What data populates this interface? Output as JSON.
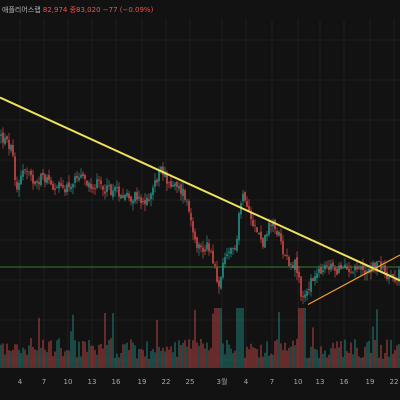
{
  "legend": {
    "name_fragment": "애플리어스랩",
    "values": "82,974  종83,020  −77 (−0.09%)"
  },
  "colors": {
    "background": "#121212",
    "grid": "#262626",
    "up": "#26a69a",
    "down": "#ef5350",
    "resistance_line": "#f2e15c",
    "support_line": "#f2a12e",
    "horizontal_level": "#2e7d32"
  },
  "chart_data": {
    "type": "candlestick",
    "title": "",
    "xlabel": "",
    "ylabel": "",
    "x_tick_labels": [
      "4",
      "7",
      "10",
      "13",
      "16",
      "19",
      "22",
      "25",
      "3월",
      "4",
      "7",
      "10",
      "13",
      "16",
      "19",
      "22"
    ],
    "grid": true,
    "trendlines": [
      {
        "kind": "resistance",
        "color": "#f2e15c",
        "from": {
          "x_index": 0,
          "price": 0.875
        },
        "to": {
          "x_index": 1,
          "price": 0.265
        }
      },
      {
        "kind": "support",
        "color": "#f2a12e",
        "from": {
          "x_index": 0.77,
          "price": 0.185
        },
        "to": {
          "x_index": 1,
          "price": 0.35
        }
      }
    ],
    "horizontal_levels": [
      {
        "color": "#2e7d32",
        "price": 0.31
      }
    ],
    "price_path": [
      [
        0.0,
        0.75
      ],
      [
        0.03,
        0.7
      ],
      [
        0.04,
        0.55
      ],
      [
        0.055,
        0.64
      ],
      [
        0.08,
        0.6
      ],
      [
        0.11,
        0.61
      ],
      [
        0.15,
        0.57
      ],
      [
        0.2,
        0.6
      ],
      [
        0.25,
        0.58
      ],
      [
        0.3,
        0.56
      ],
      [
        0.34,
        0.54
      ],
      [
        0.36,
        0.51
      ],
      [
        0.38,
        0.57
      ],
      [
        0.4,
        0.63
      ],
      [
        0.41,
        0.62
      ],
      [
        0.43,
        0.58
      ],
      [
        0.46,
        0.56
      ],
      [
        0.48,
        0.46
      ],
      [
        0.49,
        0.4
      ],
      [
        0.505,
        0.36
      ],
      [
        0.52,
        0.39
      ],
      [
        0.535,
        0.33
      ],
      [
        0.545,
        0.22
      ],
      [
        0.555,
        0.31
      ],
      [
        0.57,
        0.34
      ],
      [
        0.59,
        0.39
      ],
      [
        0.6,
        0.52
      ],
      [
        0.61,
        0.56
      ],
      [
        0.625,
        0.5
      ],
      [
        0.64,
        0.43
      ],
      [
        0.66,
        0.39
      ],
      [
        0.675,
        0.45
      ],
      [
        0.69,
        0.44
      ],
      [
        0.705,
        0.38
      ],
      [
        0.72,
        0.33
      ],
      [
        0.74,
        0.32
      ],
      [
        0.755,
        0.2
      ],
      [
        0.77,
        0.24
      ],
      [
        0.79,
        0.28
      ],
      [
        0.81,
        0.3
      ],
      [
        0.83,
        0.31
      ],
      [
        0.85,
        0.3
      ],
      [
        0.88,
        0.31
      ],
      [
        0.91,
        0.3
      ],
      [
        0.93,
        0.31
      ],
      [
        0.95,
        0.32
      ],
      [
        0.965,
        0.29
      ],
      [
        0.98,
        0.28
      ],
      [
        1.0,
        0.285
      ]
    ]
  }
}
